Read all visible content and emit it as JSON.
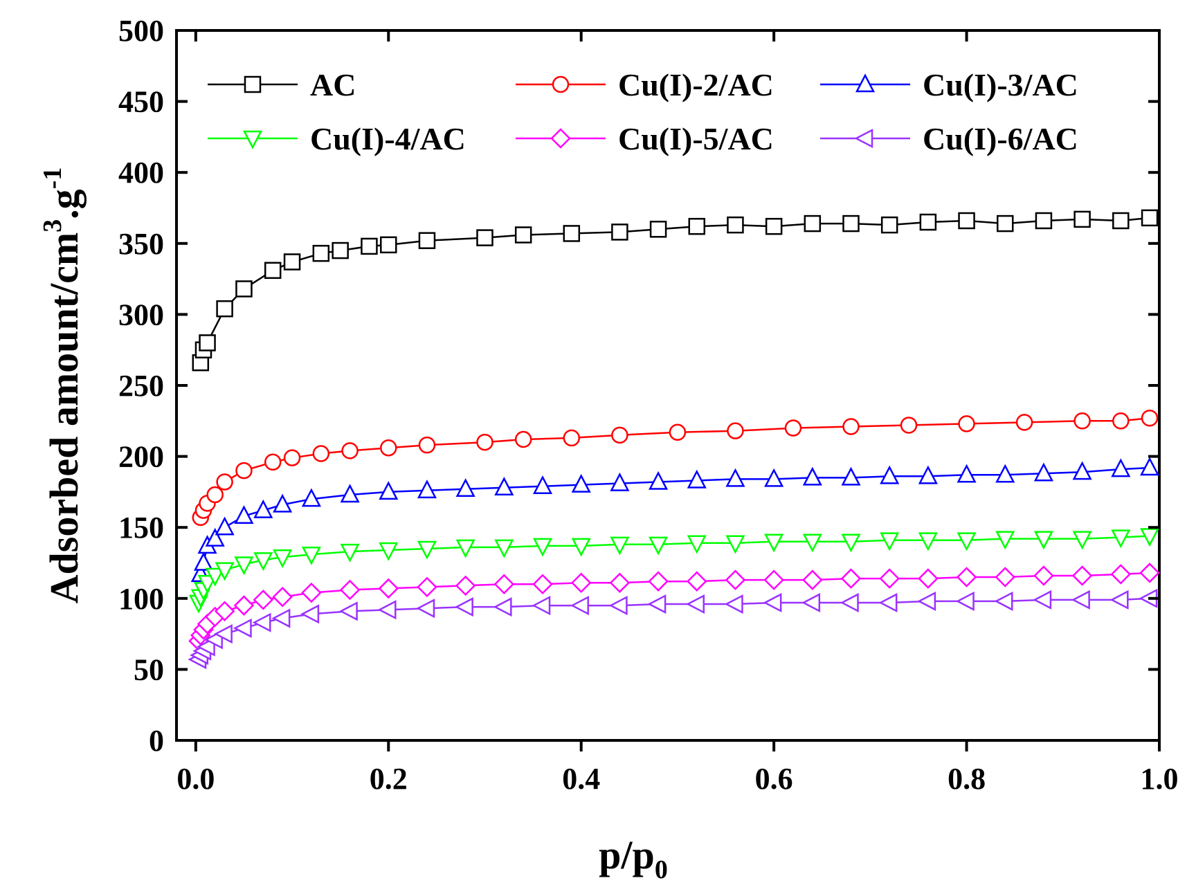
{
  "chart_data": {
    "type": "line",
    "title": "",
    "xlabel": "p/p",
    "xlabel_sub": "0",
    "ylabel": "Adsorbed amount/cm",
    "ylabel_sup1": "3",
    "ylabel_mid": ".g",
    "ylabel_sup2": "-1",
    "xlim": [
      -0.02,
      1.0
    ],
    "ylim": [
      0,
      500
    ],
    "xticks": [
      0.0,
      0.2,
      0.4,
      0.6,
      0.8,
      1.0
    ],
    "xtick_labels": [
      "0.0",
      "0.2",
      "0.4",
      "0.6",
      "0.8",
      "1.0"
    ],
    "yticks": [
      0,
      50,
      100,
      150,
      200,
      250,
      300,
      350,
      400,
      450,
      500
    ],
    "ytick_labels": [
      "0",
      "50",
      "100",
      "150",
      "200",
      "250",
      "300",
      "350",
      "400",
      "450",
      "500"
    ],
    "legend_position": "top",
    "series": [
      {
        "name": "AC",
        "color": "#000000",
        "marker": "square",
        "x": [
          0.005,
          0.008,
          0.012,
          0.03,
          0.05,
          0.08,
          0.1,
          0.13,
          0.15,
          0.18,
          0.2,
          0.24,
          0.3,
          0.34,
          0.39,
          0.44,
          0.48,
          0.52,
          0.56,
          0.6,
          0.64,
          0.68,
          0.72,
          0.76,
          0.8,
          0.84,
          0.88,
          0.92,
          0.96,
          0.99
        ],
        "y": [
          266,
          275,
          280,
          304,
          318,
          331,
          337,
          343,
          345,
          348,
          349,
          352,
          354,
          356,
          357,
          358,
          360,
          362,
          363,
          362,
          364,
          364,
          363,
          365,
          366,
          364,
          366,
          367,
          366,
          368
        ]
      },
      {
        "name": "Cu(I)-2/AC",
        "color": "#ff0000",
        "marker": "circle",
        "x": [
          0.005,
          0.008,
          0.012,
          0.02,
          0.03,
          0.05,
          0.08,
          0.1,
          0.13,
          0.16,
          0.2,
          0.24,
          0.3,
          0.34,
          0.39,
          0.44,
          0.5,
          0.56,
          0.62,
          0.68,
          0.74,
          0.8,
          0.86,
          0.92,
          0.96,
          0.99
        ],
        "y": [
          157,
          162,
          167,
          173,
          182,
          190,
          196,
          199,
          202,
          204,
          206,
          208,
          210,
          212,
          213,
          215,
          217,
          218,
          220,
          221,
          222,
          223,
          224,
          225,
          225,
          227
        ]
      },
      {
        "name": "Cu(I)-3/AC",
        "color": "#0000ff",
        "marker": "triangle-up",
        "x": [
          0.005,
          0.008,
          0.012,
          0.02,
          0.03,
          0.05,
          0.07,
          0.09,
          0.12,
          0.16,
          0.2,
          0.24,
          0.28,
          0.32,
          0.36,
          0.4,
          0.44,
          0.48,
          0.52,
          0.56,
          0.6,
          0.64,
          0.68,
          0.72,
          0.76,
          0.8,
          0.84,
          0.88,
          0.92,
          0.96,
          0.99
        ],
        "y": [
          117,
          125,
          137,
          142,
          150,
          158,
          162,
          166,
          170,
          173,
          175,
          176,
          177,
          178,
          179,
          180,
          181,
          182,
          183,
          184,
          184,
          185,
          185,
          186,
          186,
          187,
          187,
          188,
          189,
          191,
          192
        ]
      },
      {
        "name": "Cu(I)-4/AC",
        "color": "#00ff00",
        "marker": "triangle-down",
        "x": [
          0.003,
          0.005,
          0.008,
          0.012,
          0.02,
          0.03,
          0.05,
          0.07,
          0.09,
          0.12,
          0.16,
          0.2,
          0.24,
          0.28,
          0.32,
          0.36,
          0.4,
          0.44,
          0.48,
          0.52,
          0.56,
          0.6,
          0.64,
          0.68,
          0.72,
          0.76,
          0.8,
          0.84,
          0.88,
          0.92,
          0.96,
          0.99
        ],
        "y": [
          97,
          101,
          106,
          111,
          116,
          120,
          124,
          127,
          129,
          131,
          133,
          134,
          135,
          136,
          136,
          137,
          137,
          138,
          138,
          139,
          139,
          140,
          140,
          140,
          141,
          141,
          141,
          142,
          142,
          142,
          143,
          144
        ]
      },
      {
        "name": "Cu(I)-5/AC",
        "color": "#ff00ff",
        "marker": "diamond",
        "x": [
          0.003,
          0.005,
          0.008,
          0.012,
          0.02,
          0.03,
          0.05,
          0.07,
          0.09,
          0.12,
          0.16,
          0.2,
          0.24,
          0.28,
          0.32,
          0.36,
          0.4,
          0.44,
          0.48,
          0.52,
          0.56,
          0.6,
          0.64,
          0.68,
          0.72,
          0.76,
          0.8,
          0.84,
          0.88,
          0.92,
          0.96,
          0.99
        ],
        "y": [
          70,
          74,
          78,
          82,
          87,
          91,
          95,
          99,
          101,
          104,
          106,
          107,
          108,
          109,
          110,
          110,
          111,
          111,
          112,
          112,
          113,
          113,
          113,
          114,
          114,
          114,
          115,
          115,
          116,
          116,
          117,
          118
        ]
      },
      {
        "name": "Cu(I)-6/AC",
        "color": "#9933ff",
        "marker": "triangle-left",
        "x": [
          0.003,
          0.005,
          0.008,
          0.012,
          0.02,
          0.03,
          0.05,
          0.07,
          0.09,
          0.12,
          0.16,
          0.2,
          0.24,
          0.28,
          0.32,
          0.36,
          0.4,
          0.44,
          0.48,
          0.52,
          0.56,
          0.6,
          0.64,
          0.68,
          0.72,
          0.76,
          0.8,
          0.84,
          0.88,
          0.92,
          0.96,
          0.99
        ],
        "y": [
          57,
          60,
          63,
          66,
          71,
          75,
          79,
          83,
          86,
          89,
          91,
          92,
          93,
          94,
          94,
          95,
          95,
          95,
          96,
          96,
          96,
          97,
          97,
          97,
          97,
          98,
          98,
          98,
          99,
          99,
          99,
          100
        ]
      }
    ]
  }
}
